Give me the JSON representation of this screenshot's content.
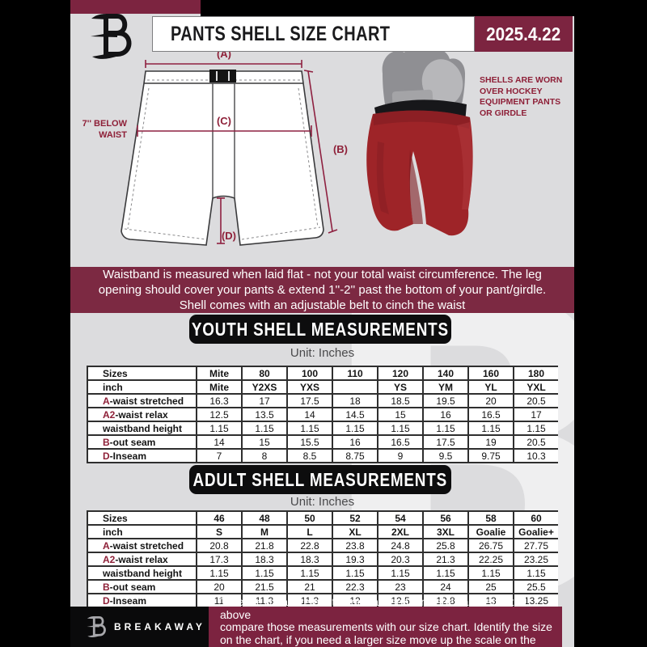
{
  "colors": {
    "maroon": "#7c2942",
    "maroon_dark": "#7c2340",
    "gray_background": "#dcdcde",
    "accent_text": "#8e2038",
    "shell_red": "#9e2428",
    "banner_black": "#0d0d0e"
  },
  "header": {
    "title": "PANTS SHELL SIZE CHART",
    "date": "2025.4.22",
    "logo_letter": "B"
  },
  "diagram": {
    "label_a": "(A)",
    "label_b": "(B)",
    "label_c": "(C)",
    "label_d": "(D)",
    "below_waist_line1": "7'' BELOW",
    "below_waist_line2": "WAIST",
    "shell_note_lines": [
      "SHELLS ARE WORN",
      "OVER HOCKEY",
      "EQUIPMENT PANTS",
      "OR GIRDLE"
    ]
  },
  "notice_lines": [
    "Waistband is measured when laid flat - not your total waist circumference. The leg",
    "opening should cover your pants & extend 1''-2'' past the bottom of your pant/girdle.",
    "Shell comes with an adjustable belt to cinch the waist"
  ],
  "sections": [
    {
      "id": "youth",
      "title": "YOUTH SHELL MEASUREMENTS",
      "unit": "Unit: Inches",
      "table": {
        "col_header": {
          "label": "Sizes",
          "values": [
            "Mite",
            "80",
            "100",
            "110",
            "120",
            "140",
            "160",
            "180"
          ]
        },
        "sub_header": {
          "label": "inch",
          "values": [
            "Mite",
            "Y2XS",
            "YXS",
            "",
            "YS",
            "YM",
            "YL",
            "YXL"
          ]
        },
        "rows": [
          {
            "prefix": "A",
            "label": "-waist stretched",
            "values": [
              "16.3",
              "17",
              "17.5",
              "18",
              "18.5",
              "19.5",
              "20",
              "20.5"
            ]
          },
          {
            "prefix": "A2",
            "label": "-waist relax",
            "values": [
              "12.5",
              "13.5",
              "14",
              "14.5",
              "15",
              "16",
              "16.5",
              "17"
            ]
          },
          {
            "prefix": "",
            "label": "waistband height",
            "values": [
              "1.15",
              "1.15",
              "1.15",
              "1.15",
              "1.15",
              "1.15",
              "1.15",
              "1.15"
            ]
          },
          {
            "prefix": "B",
            "label": "-out seam",
            "values": [
              "14",
              "15",
              "15.5",
              "16",
              "16.5",
              "17.5",
              "19",
              "20.5"
            ]
          },
          {
            "prefix": "D",
            "label": "-Inseam",
            "values": [
              "7",
              "8",
              "8.5",
              "8.75",
              "9",
              "9.5",
              "9.75",
              "10.3"
            ]
          }
        ]
      }
    },
    {
      "id": "adult",
      "title": "ADULT SHELL MEASUREMENTS",
      "unit": "Unit: Inches",
      "table": {
        "col_header": {
          "label": "Sizes",
          "values": [
            "46",
            "48",
            "50",
            "52",
            "54",
            "56",
            "58",
            "60"
          ]
        },
        "sub_header": {
          "label": "inch",
          "values": [
            "S",
            "M",
            "L",
            "XL",
            "2XL",
            "3XL",
            "Goalie",
            "Goalie+"
          ]
        },
        "rows": [
          {
            "prefix": "A",
            "label": "-waist stretched",
            "values": [
              "20.8",
              "21.8",
              "22.8",
              "23.8",
              "24.8",
              "25.8",
              "26.75",
              "27.75"
            ]
          },
          {
            "prefix": "A2",
            "label": "-waist relax",
            "values": [
              "17.3",
              "18.3",
              "18.3",
              "19.3",
              "20.3",
              "21.3",
              "22.25",
              "23.25"
            ]
          },
          {
            "prefix": "",
            "label": "waistband height",
            "values": [
              "1.15",
              "1.15",
              "1.15",
              "1.15",
              "1.15",
              "1.15",
              "1.15",
              "1.15"
            ]
          },
          {
            "prefix": "B",
            "label": "-out seam",
            "values": [
              "20",
              "21.5",
              "21",
              "22.3",
              "23",
              "24",
              "25",
              "25.5"
            ]
          },
          {
            "prefix": "D",
            "label": "-Inseam",
            "values": [
              "11",
              "11.3",
              "11.3",
              "12",
              "12.5",
              "12.8",
              "13",
              "13.25"
            ]
          }
        ]
      }
    }
  ],
  "footer": {
    "brand": "BREAKAWAY",
    "lines": [
      "Take the measurements from last seasons shell as instructed above",
      "compare those measurements  with our size chart. Identify the size",
      "on the chart, if you need a larger size move up the scale on the chart"
    ]
  }
}
